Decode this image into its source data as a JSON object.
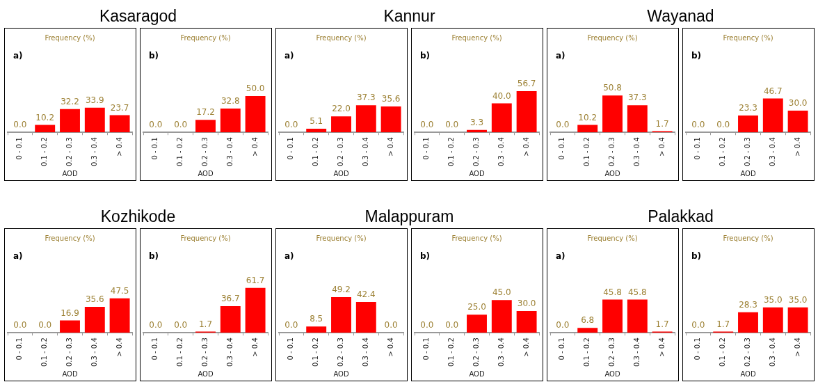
{
  "chart_data": [
    {
      "type": "bar",
      "title": "Kasaragod",
      "subtitle": "Frequency (%)",
      "annotations": [
        "a)"
      ],
      "xlabel": "AOD",
      "categories": [
        "0 - 0.1",
        "0.1 - 0.2",
        "0.2 - 0.3",
        "0.3 - 0.4",
        "> 0.4"
      ],
      "values": [
        0,
        10.2,
        32.2,
        33.9,
        23.7
      ],
      "value_labels": [
        "0.0",
        "10.2",
        "32.2",
        "33.9",
        "23.7"
      ],
      "color": "#ff0000"
    },
    {
      "type": "bar",
      "subtitle": "Frequency (%)",
      "annotations": [
        "b)"
      ],
      "xlabel": "AOD",
      "categories": [
        "0 - 0.1",
        "0.1 - 0.2",
        "0.2 - 0.3",
        "0.3 - 0.4",
        "> 0.4"
      ],
      "values": [
        0,
        0,
        17.2,
        32.8,
        50
      ],
      "value_labels": [
        "0.0",
        "0.0",
        "17.2",
        "32.8",
        "50.0"
      ],
      "color": "#ff0000"
    },
    {
      "type": "bar",
      "title": "Kannur",
      "subtitle": "Frequency (%)",
      "annotations": [
        "a)"
      ],
      "xlabel": "AOD",
      "categories": [
        "0 - 0.1",
        "0.1 - 0.2",
        "0.2 - 0.3",
        "0.3 - 0.4",
        "> 0.4"
      ],
      "values": [
        0,
        5.1,
        22,
        37.3,
        35.6
      ],
      "value_labels": [
        "0.0",
        "5.1",
        "22.0",
        "37.3",
        "35.6"
      ],
      "color": "#ff0000"
    },
    {
      "type": "bar",
      "subtitle": "Frequency (%)",
      "annotations": [
        "b)"
      ],
      "xlabel": "AOD",
      "categories": [
        "0 - 0.1",
        "0.1 - 0.2",
        "0.2 - 0.3",
        "0.3 - 0.4",
        "> 0.4"
      ],
      "values": [
        0,
        0,
        3.3,
        40,
        56.7
      ],
      "value_labels": [
        "0.0",
        "0.0",
        "3.3",
        "40.0",
        "56.7"
      ],
      "color": "#ff0000"
    },
    {
      "type": "bar",
      "title": "Wayanad",
      "subtitle": "Frequency (%)",
      "annotations": [
        "a)"
      ],
      "xlabel": "AOD",
      "categories": [
        "0 - 0.1",
        "0.1 - 0.2",
        "0.2 - 0.3",
        "0.3 - 0.4",
        "> 0.4"
      ],
      "values": [
        0,
        10.2,
        50.8,
        37.3,
        1.7
      ],
      "value_labels": [
        "0.0",
        "10.2",
        "50.8",
        "37.3",
        "1.7"
      ],
      "color": "#ff0000"
    },
    {
      "type": "bar",
      "subtitle": "Frequency (%)",
      "annotations": [
        "b)"
      ],
      "xlabel": "AOD",
      "categories": [
        "0 - 0.1",
        "0.1 - 0.2",
        "0.2 - 0.3",
        "0.3 - 0.4",
        "> 0.4"
      ],
      "values": [
        0,
        0,
        23.3,
        46.7,
        30
      ],
      "value_labels": [
        "0.0",
        "0.0",
        "23.3",
        "46.7",
        "30.0"
      ],
      "color": "#ff0000"
    },
    {
      "type": "bar",
      "title": "Kozhikode",
      "subtitle": "Frequency (%)",
      "annotations": [
        "a)"
      ],
      "xlabel": "AOD",
      "categories": [
        "0 - 0.1",
        "0.1 - 0.2",
        "0.2 - 0.3",
        "0.3 - 0.4",
        "> 0.4"
      ],
      "values": [
        0,
        0,
        16.9,
        35.6,
        47.5
      ],
      "value_labels": [
        "0.0",
        "0.0",
        "16.9",
        "35.6",
        "47.5"
      ],
      "color": "#ff0000"
    },
    {
      "type": "bar",
      "subtitle": "Frequency (%)",
      "annotations": [
        "b)"
      ],
      "xlabel": "AOD",
      "categories": [
        "0 - 0.1",
        "0.1 - 0.2",
        "0.2 - 0.3",
        "0.3 - 0.4",
        "> 0.4"
      ],
      "values": [
        0,
        0,
        1.7,
        36.7,
        61.7
      ],
      "value_labels": [
        "0.0",
        "0.0",
        "1.7",
        "36.7",
        "61.7"
      ],
      "color": "#ff0000"
    },
    {
      "type": "bar",
      "title": "Malappuram",
      "subtitle": "Frequency (%)",
      "annotations": [
        "a)"
      ],
      "xlabel": "AOD",
      "categories": [
        "0 - 0.1",
        "0.1 - 0.2",
        "0.2 - 0.3",
        "0.3 - 0.4",
        "> 0.4"
      ],
      "values": [
        0,
        8.5,
        49.2,
        42.4,
        0
      ],
      "value_labels": [
        "0.0",
        "8.5",
        "49.2",
        "42.4",
        "0.0"
      ],
      "color": "#ff0000"
    },
    {
      "type": "bar",
      "subtitle": "Frequency (%)",
      "annotations": [
        "b)"
      ],
      "xlabel": "AOD",
      "categories": [
        "0 - 0.1",
        "0.1 - 0.2",
        "0.2 - 0.3",
        "0.3 - 0.4",
        "> 0.4"
      ],
      "values": [
        0,
        0,
        25,
        45,
        30
      ],
      "value_labels": [
        "0.0",
        "0.0",
        "25.0",
        "45.0",
        "30.0"
      ],
      "color": "#ff0000"
    },
    {
      "type": "bar",
      "title": "Palakkad",
      "subtitle": "Frequency (%)",
      "annotations": [
        "a)"
      ],
      "xlabel": "AOD",
      "categories": [
        "0 - 0.1",
        "0.1 - 0.2",
        "0.2 - 0.3",
        "0.3 - 0.4",
        "> 0.4"
      ],
      "values": [
        0,
        6.8,
        45.8,
        45.8,
        1.7
      ],
      "value_labels": [
        "0.0",
        "6.8",
        "45.8",
        "45.8",
        "1.7"
      ],
      "color": "#ff0000"
    },
    {
      "type": "bar",
      "subtitle": "Frequency (%)",
      "annotations": [
        "b)"
      ],
      "xlabel": "AOD",
      "categories": [
        "0 - 0.1",
        "0.1 - 0.2",
        "0.2 - 0.3",
        "0.3 - 0.4",
        "> 0.4"
      ],
      "values": [
        0,
        1.7,
        28.3,
        35,
        35
      ],
      "value_labels": [
        "0.0",
        "1.7",
        "28.3",
        "35.0",
        "35.0"
      ],
      "color": "#ff0000"
    }
  ]
}
